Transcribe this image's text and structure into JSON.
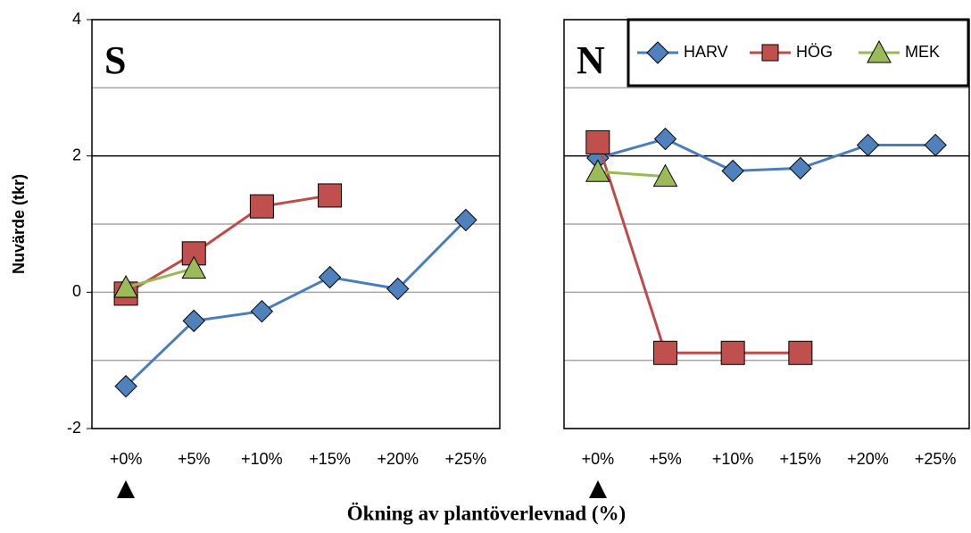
{
  "chart_data": [
    {
      "type": "line",
      "panel_label": "S",
      "ylabel": "Nuvärde (tkr)",
      "xlabel": "Ökning av plantöverlevnad (%)",
      "categories": [
        "+0%",
        "+5%",
        "+10%",
        "+15%",
        "+20%",
        "+25%"
      ],
      "ylim": [
        -2,
        4
      ],
      "yticks": [
        -2,
        0,
        2,
        4
      ],
      "yminor": [
        -1,
        1,
        3
      ],
      "grid": true,
      "series": [
        {
          "name": "HARV",
          "color": "#4a7ebb",
          "fill": "#4f81bd",
          "marker": "diamond",
          "values": [
            -1.38,
            -0.42,
            -0.28,
            0.22,
            0.05,
            1.06
          ]
        },
        {
          "name": "HÖG",
          "color": "#be4b48",
          "fill": "#c0504d",
          "marker": "square",
          "values": [
            -0.02,
            0.57,
            1.26,
            1.42,
            null,
            null
          ]
        },
        {
          "name": "MEK",
          "color": "#98b954",
          "fill": "#9bbb59",
          "marker": "triangle",
          "values": [
            0.07,
            0.35,
            null,
            null,
            null,
            null
          ]
        }
      ]
    },
    {
      "type": "line",
      "panel_label": "N",
      "legend": "upper right",
      "categories": [
        "+0%",
        "+5%",
        "+10%",
        "+15%",
        "+20%",
        "+25%"
      ],
      "ylim": [
        -2,
        4
      ],
      "yticks": [
        -2,
        0,
        2,
        4
      ],
      "yminor": [
        -1,
        1,
        3
      ],
      "grid": true,
      "series": [
        {
          "name": "HARV",
          "color": "#4a7ebb",
          "fill": "#4f81bd",
          "marker": "diamond",
          "values": [
            1.97,
            2.25,
            1.78,
            1.82,
            2.16,
            2.16
          ]
        },
        {
          "name": "HÖG",
          "color": "#be4b48",
          "fill": "#c0504d",
          "marker": "square",
          "values": [
            2.2,
            -0.89,
            -0.89,
            -0.89,
            null,
            null
          ]
        },
        {
          "name": "MEK",
          "color": "#98b954",
          "fill": "#9bbb59",
          "marker": "triangle",
          "values": [
            1.77,
            1.7,
            null,
            null,
            null,
            null
          ]
        }
      ]
    }
  ]
}
